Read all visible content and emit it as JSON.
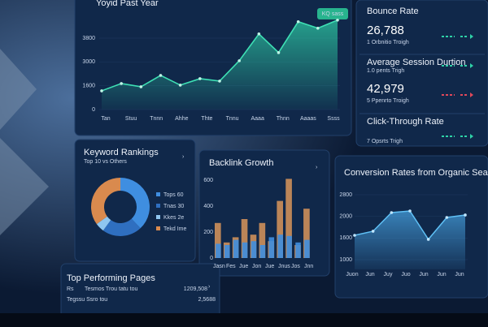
{
  "main_chart": {
    "title": "Yoyid Past Year",
    "badge": "KQ sass",
    "y_labels": [
      "3800",
      "3000",
      "1600",
      "0"
    ],
    "x_labels": [
      "Tan",
      "Stuu",
      "Tnnn",
      "Ahhe",
      "Thte",
      "Tnnu",
      "Aaaa",
      "Thnn",
      "Aaaas",
      "Ssss"
    ],
    "values": [
      994,
      1382,
      1209,
      1814,
      1296,
      1641,
      1512,
      2592,
      4018,
      3024,
      4666,
      4320,
      4752
    ],
    "ylim": [
      0,
      5000
    ]
  },
  "metrics": [
    {
      "title": "Bounce Rate",
      "value": "26,788",
      "note": "1 Orbnitio Troigh"
    },
    {
      "title": "Average Session Durtion",
      "note": "1.0 pents Trigh"
    },
    {
      "value": "42,979",
      "note": "5 Ppenrto Troigh"
    },
    {
      "title": "Click-Through Rate",
      "note": "7 Opsrts Trigh"
    }
  ],
  "keyword_rankings": {
    "title": "Keyword Rankings",
    "subtitle": "Top 10 vs Others",
    "legend": [
      "Tops 60",
      "Tnas 30",
      "Kkes 2e",
      "Tekd Ime"
    ],
    "values": [
      38,
      22,
      5,
      35
    ],
    "colors": [
      "#3f8ee0",
      "#2f6fc0",
      "#8fc6f0",
      "#d98a4e"
    ]
  },
  "backlink_growth": {
    "title": "Backlink Growth",
    "y_labels": [
      "600",
      "400",
      "200",
      "0"
    ],
    "x_labels": [
      "Jasn",
      "Fes",
      "Jue",
      "Jon",
      "Jue",
      "Jnus",
      "Jos",
      "Jnn"
    ],
    "ylim": [
      0,
      650
    ],
    "series": [
      {
        "color": "#d9955a",
        "values": [
          270,
          120,
          160,
          300,
          180,
          270,
          130,
          440,
          610,
          100,
          380
        ]
      },
      {
        "color": "#3f8ee0",
        "values": [
          110,
          100,
          140,
          120,
          130,
          100,
          160,
          180,
          170,
          120,
          140
        ]
      }
    ]
  },
  "conversion": {
    "title": "Conversion Rates from Organic Search",
    "y_labels": [
      "2800",
      "2000",
      "1600",
      "1000"
    ],
    "x_labels": [
      "Juon",
      "Jun",
      "Juy",
      "Juo",
      "Jun",
      "Jun",
      "Jun"
    ],
    "ylim": [
      1000,
      2800
    ],
    "values": [
      1675,
      1788,
      2305,
      2350,
      1563,
      2170,
      2238
    ]
  },
  "top_pages": {
    "title": "Top Performing Pages",
    "rows": [
      [
        "Rs",
        "Tesmos Trou tatu tou",
        "1209,508"
      ],
      [
        "Tegssu Ssro tou",
        "2,5688"
      ]
    ]
  }
}
